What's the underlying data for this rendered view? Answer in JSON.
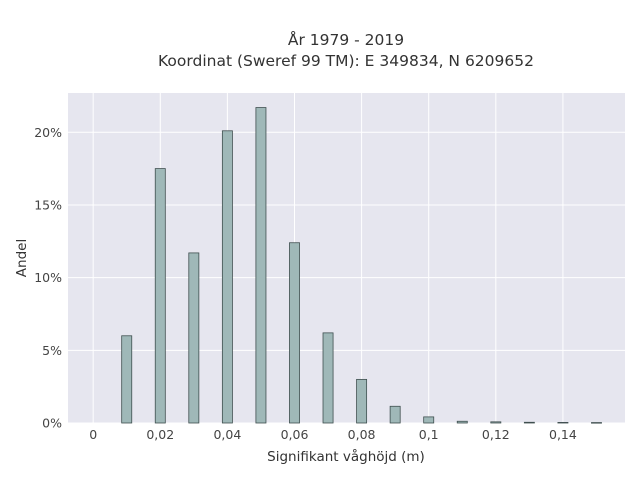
{
  "chart_data": {
    "type": "bar",
    "title_line1": "År 1979 - 2019",
    "title_line2": "Koordinat (Sweref 99 TM): E 349834, N 6209652",
    "xlabel": "Signifikant våghöjd (m)",
    "ylabel": "Andel",
    "x_ticks": [
      {
        "value": 0,
        "label": "0"
      },
      {
        "value": 0.02,
        "label": "0,02"
      },
      {
        "value": 0.04,
        "label": "0,04"
      },
      {
        "value": 0.06,
        "label": "0,06"
      },
      {
        "value": 0.08,
        "label": "0,08"
      },
      {
        "value": 0.1,
        "label": "0,1"
      },
      {
        "value": 0.12,
        "label": "0,12"
      },
      {
        "value": 0.14,
        "label": "0,14"
      }
    ],
    "y_ticks": [
      {
        "value": 0,
        "label": "0%"
      },
      {
        "value": 5,
        "label": "5%"
      },
      {
        "value": 10,
        "label": "10%"
      },
      {
        "value": 15,
        "label": "15%"
      },
      {
        "value": 20,
        "label": "20%"
      }
    ],
    "xlim": [
      -0.0075,
      0.1585
    ],
    "ylim": [
      0,
      22.7
    ],
    "grid": true,
    "bar_width": 0.003,
    "bar_fill": "#9fb8b8",
    "bar_stroke": "#3f4f4f",
    "plot_bg": "#e6e6ef",
    "x": [
      0.01,
      0.02,
      0.03,
      0.04,
      0.05,
      0.06,
      0.07,
      0.08,
      0.09,
      0.1,
      0.11,
      0.12,
      0.13,
      0.14,
      0.15
    ],
    "values": [
      6.0,
      17.5,
      11.7,
      20.1,
      21.7,
      12.4,
      6.2,
      3.0,
      1.15,
      0.42,
      0.12,
      0.08,
      0.05,
      0.04,
      0.03
    ]
  }
}
